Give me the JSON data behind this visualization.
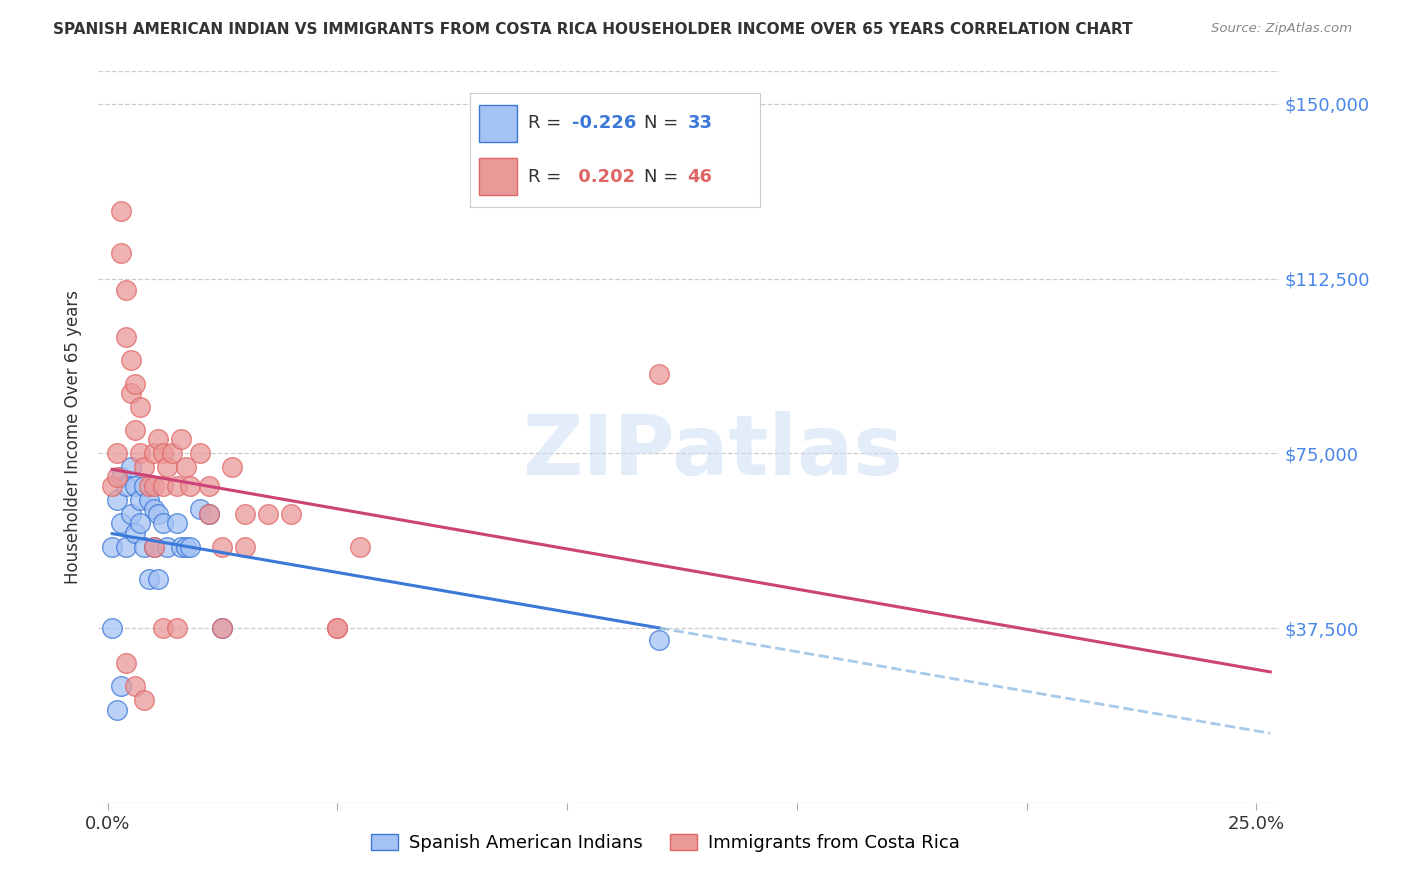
{
  "title": "SPANISH AMERICAN INDIAN VS IMMIGRANTS FROM COSTA RICA HOUSEHOLDER INCOME OVER 65 YEARS CORRELATION CHART",
  "source": "Source: ZipAtlas.com",
  "ylabel": "Householder Income Over 65 years",
  "xlim": [
    -0.002,
    0.255
  ],
  "ylim": [
    0,
    157000
  ],
  "ytick_vals": [
    37500,
    75000,
    112500,
    150000
  ],
  "ytick_labels": [
    "$37,500",
    "$75,000",
    "$112,500",
    "$150,000"
  ],
  "xtick_vals": [
    0.0,
    0.05,
    0.1,
    0.15,
    0.2,
    0.25
  ],
  "xtick_labels": [
    "0.0%",
    "",
    "",
    "",
    "",
    "25.0%"
  ],
  "watermark": "ZIPatlas",
  "blue_label": "Spanish American Indians",
  "pink_label": "Immigrants from Costa Rica",
  "blue_R": -0.226,
  "blue_N": 33,
  "pink_R": 0.202,
  "pink_N": 46,
  "blue_fill": "#a4c2f4",
  "pink_fill": "#ea9999",
  "blue_edge": "#3c78d8",
  "pink_edge": "#e06666",
  "blue_line": "#3c78d8",
  "pink_line": "#cc4477",
  "blue_dash": "#6fa8dc",
  "blue_x": [
    0.001,
    0.001,
    0.002,
    0.003,
    0.003,
    0.004,
    0.004,
    0.005,
    0.005,
    0.006,
    0.006,
    0.007,
    0.007,
    0.008,
    0.008,
    0.009,
    0.009,
    0.01,
    0.01,
    0.011,
    0.011,
    0.012,
    0.013,
    0.015,
    0.016,
    0.017,
    0.018,
    0.02,
    0.022,
    0.025,
    0.003,
    0.12,
    0.002
  ],
  "blue_y": [
    55000,
    37500,
    65000,
    70000,
    60000,
    68000,
    55000,
    72000,
    62000,
    68000,
    58000,
    65000,
    60000,
    68000,
    55000,
    65000,
    48000,
    63000,
    55000,
    62000,
    48000,
    60000,
    55000,
    60000,
    55000,
    55000,
    55000,
    63000,
    62000,
    37500,
    25000,
    35000,
    20000
  ],
  "pink_x": [
    0.001,
    0.002,
    0.002,
    0.003,
    0.003,
    0.004,
    0.004,
    0.005,
    0.005,
    0.006,
    0.006,
    0.007,
    0.007,
    0.008,
    0.009,
    0.01,
    0.01,
    0.011,
    0.012,
    0.012,
    0.013,
    0.014,
    0.015,
    0.016,
    0.017,
    0.018,
    0.02,
    0.022,
    0.025,
    0.027,
    0.03,
    0.035,
    0.04,
    0.05,
    0.055,
    0.12,
    0.004,
    0.006,
    0.008,
    0.01,
    0.012,
    0.015,
    0.025,
    0.05,
    0.03,
    0.022
  ],
  "pink_y": [
    68000,
    75000,
    70000,
    127000,
    118000,
    110000,
    100000,
    95000,
    88000,
    90000,
    80000,
    85000,
    75000,
    72000,
    68000,
    75000,
    68000,
    78000,
    75000,
    68000,
    72000,
    75000,
    68000,
    78000,
    72000,
    68000,
    75000,
    68000,
    55000,
    72000,
    62000,
    62000,
    62000,
    37500,
    55000,
    92000,
    30000,
    25000,
    22000,
    55000,
    37500,
    37500,
    37500,
    37500,
    55000,
    62000
  ]
}
